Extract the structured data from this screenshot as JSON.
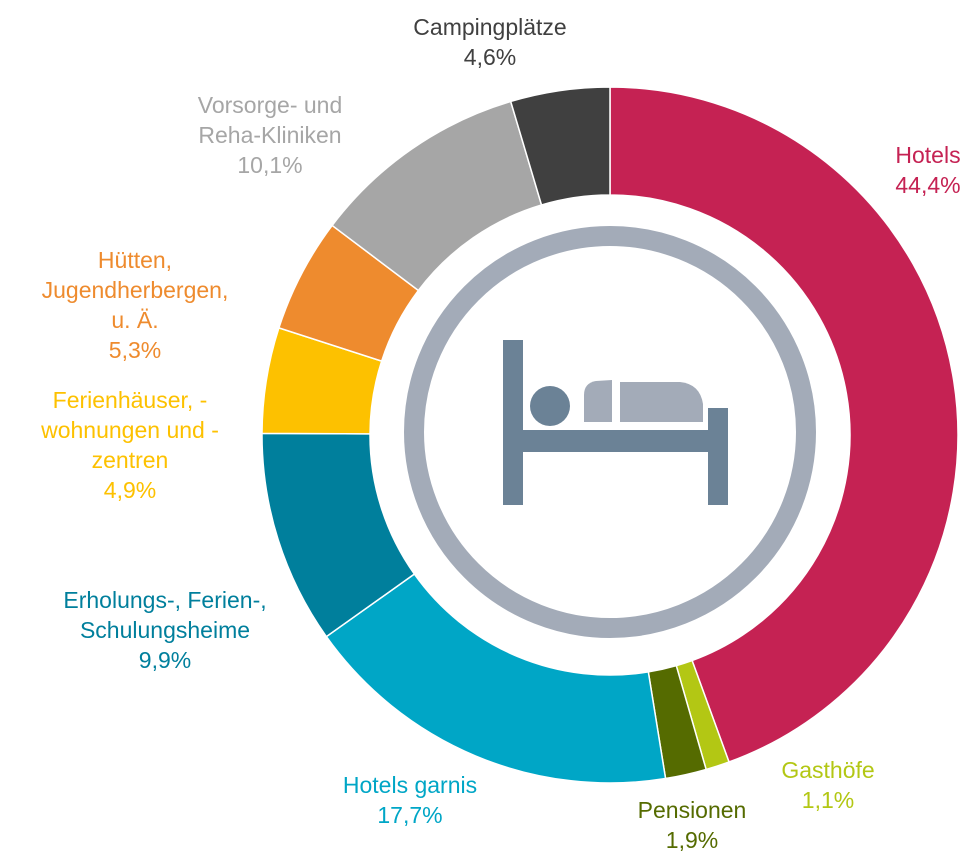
{
  "chart_data": {
    "type": "pie",
    "donut": true,
    "categories": [
      "Hotels",
      "Gasthöfe",
      "Pensionen",
      "Hotels garnis",
      "Erholungs-, Ferien-,\nSchulungsheime",
      "Ferienhäuser, -\nwohnungen und -\nzentren",
      "Hütten,\nJugendherbergen,\nu. Ä.",
      "Vorsorge- und\nReha-Kliniken",
      "Campingplätze"
    ],
    "values": [
      44.4,
      1.1,
      1.9,
      17.7,
      9.9,
      4.9,
      5.3,
      10.1,
      4.6
    ],
    "value_labels": [
      "44,4%",
      "1,1%",
      "1,9%",
      "17,7%",
      "9,9%",
      "4,9%",
      "5,3%",
      "10,1%",
      "4,6%"
    ],
    "colors": [
      "#c52253",
      "#b3c714",
      "#556b00",
      "#00a6c6",
      "#007f9c",
      "#fdc100",
      "#ee8b2e",
      "#a6a6a6",
      "#404040"
    ]
  }
}
